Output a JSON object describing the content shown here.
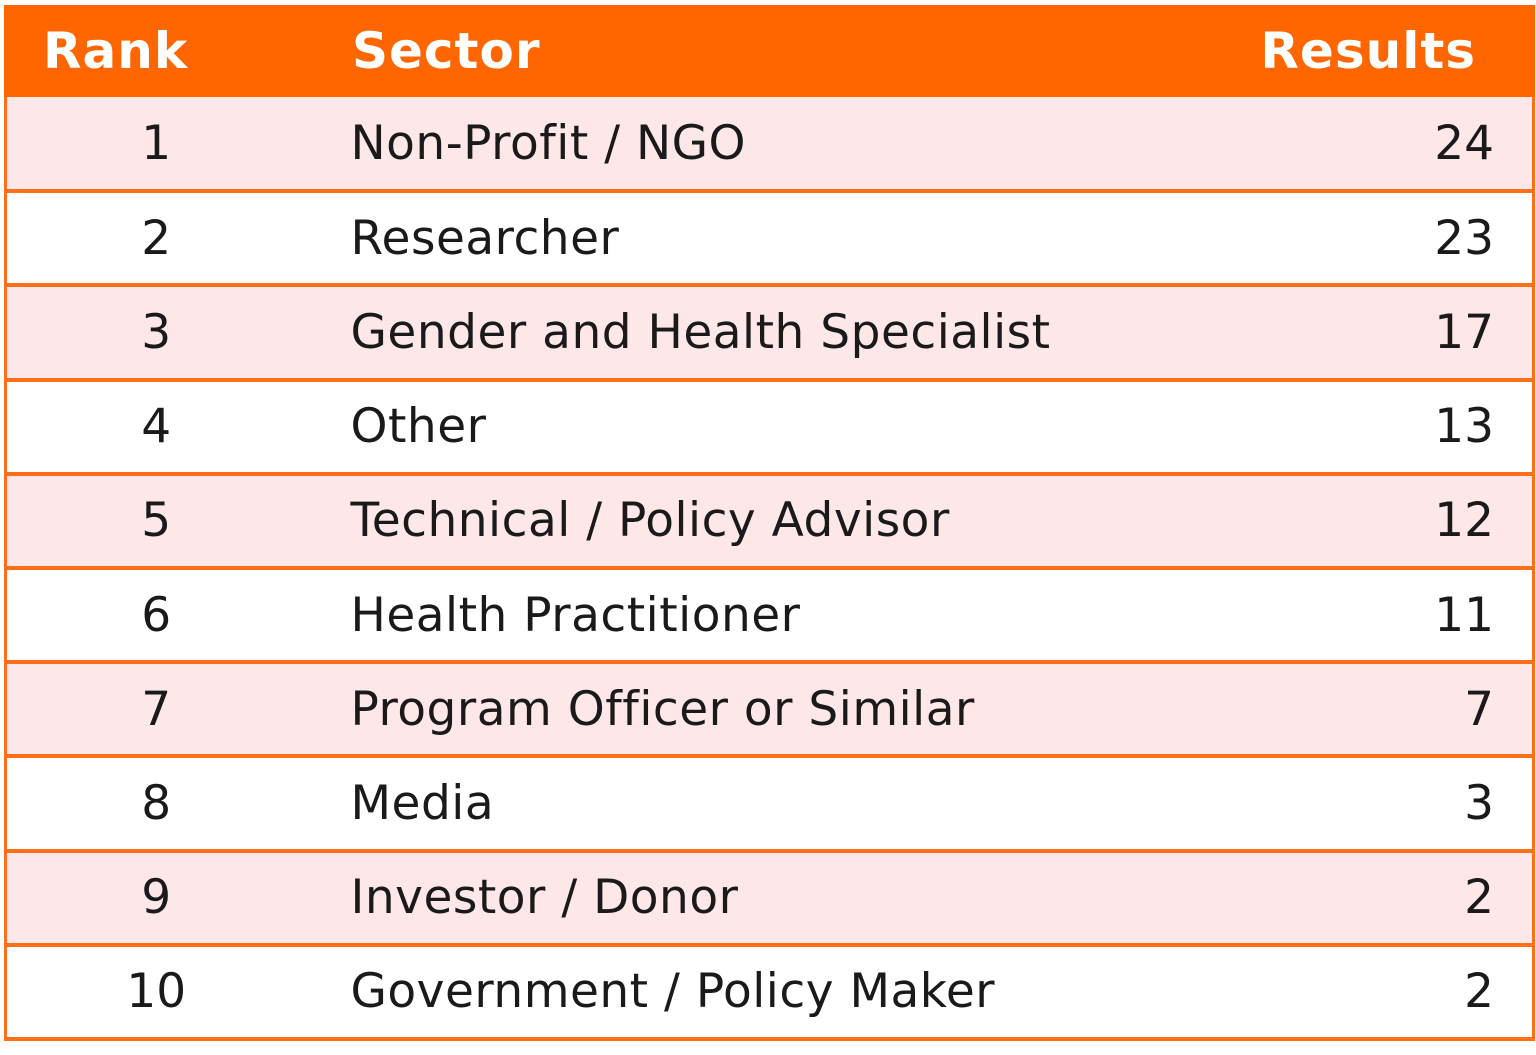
{
  "colors": {
    "header_bg": "#ff6600",
    "header_text": "#ffffff",
    "row_odd_bg": "#fde7e9",
    "row_even_bg": "#ffffff",
    "border": "#ff6f1a"
  },
  "header": {
    "rank": "Rank",
    "sector": "Sector",
    "results": "Results"
  },
  "chart_data": {
    "type": "table",
    "columns": [
      "Rank",
      "Sector",
      "Results"
    ],
    "rows": [
      {
        "rank": "1",
        "sector": "Non-Profit / NGO",
        "results": 24
      },
      {
        "rank": "2",
        "sector": "Researcher",
        "results": 23
      },
      {
        "rank": "3",
        "sector": "Gender and Health Specialist",
        "results": 17
      },
      {
        "rank": "4",
        "sector": "Other",
        "results": 13
      },
      {
        "rank": "5",
        "sector": "Technical / Policy Advisor",
        "results": 12
      },
      {
        "rank": "6",
        "sector": "Health Practitioner",
        "results": 11
      },
      {
        "rank": "7",
        "sector": "Program Officer or Similar",
        "results": 7
      },
      {
        "rank": "8",
        "sector": "Media",
        "results": 3
      },
      {
        "rank": "9",
        "sector": "Investor / Donor",
        "results": 2
      },
      {
        "rank": "10",
        "sector": "Government / Policy Maker",
        "results": 2
      }
    ]
  }
}
